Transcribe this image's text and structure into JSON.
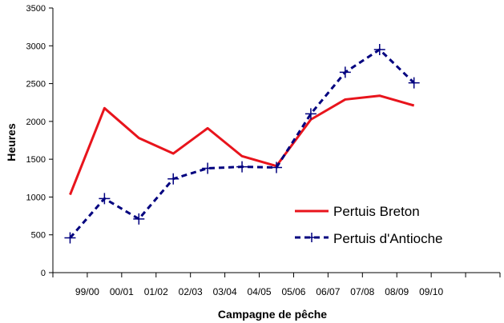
{
  "chart_data": {
    "type": "line",
    "xlabel": "Campagne de pêche",
    "ylabel": "Heures",
    "ylim": [
      0,
      3500
    ],
    "yticks": [
      0,
      500,
      1000,
      1500,
      2000,
      2500,
      3000,
      3500
    ],
    "x_tick_labels": [
      "",
      "99/00",
      "00/01",
      "01/02",
      "02/03",
      "03/04",
      "04/05",
      "05/06",
      "06/07",
      "07/08",
      "08/09",
      "09/10",
      ""
    ],
    "grid": false,
    "legend_position": "right",
    "series": [
      {
        "name": "Pertuis Breton",
        "color": "#e8141c",
        "style": "solid",
        "marker": "none",
        "values": [
          1030,
          2175,
          1780,
          1575,
          1910,
          1540,
          1410,
          2025,
          2290,
          2340,
          2210
        ]
      },
      {
        "name": "Pertuis d'Antioche",
        "color": "#00007f",
        "style": "dashed",
        "marker": "plus",
        "values": [
          460,
          980,
          710,
          1240,
          1380,
          1400,
          1390,
          2100,
          2650,
          2950,
          2510
        ]
      }
    ]
  }
}
